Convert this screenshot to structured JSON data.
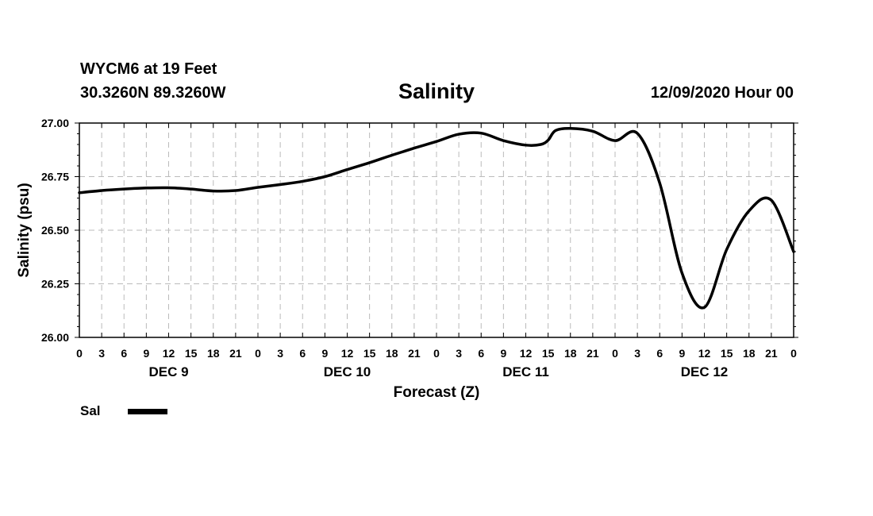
{
  "header": {
    "station": "WYCM6 at 19 Feet",
    "coords": "30.3260N 89.3260W",
    "title": "Salinity",
    "issued": "12/09/2020 Hour 00"
  },
  "chart_data": {
    "type": "line",
    "title": "Salinity",
    "xlabel": "Forecast (Z)",
    "ylabel": "Salinity (psu)",
    "ylim": [
      26.0,
      27.0
    ],
    "yticks": [
      "26.00",
      "26.25",
      "26.50",
      "26.75",
      "27.00"
    ],
    "ytick_values": [
      26.0,
      26.25,
      26.5,
      26.75,
      27.0
    ],
    "xlim_hours": [
      0,
      96
    ],
    "xtick_labels": [
      "0",
      "3",
      "6",
      "9",
      "12",
      "15",
      "18",
      "21",
      "0",
      "3",
      "6",
      "9",
      "12",
      "15",
      "18",
      "21",
      "0",
      "3",
      "6",
      "9",
      "12",
      "15",
      "18",
      "21",
      "0",
      "3",
      "6",
      "9",
      "12",
      "15",
      "18",
      "21",
      "0"
    ],
    "day_labels": [
      {
        "label": "DEC 9",
        "hour": 12
      },
      {
        "label": "DEC 10",
        "hour": 36
      },
      {
        "label": "DEC 11",
        "hour": 60
      },
      {
        "label": "DEC 12",
        "hour": 84
      }
    ],
    "grid": true,
    "x_hours": [
      0,
      3,
      6,
      9,
      12,
      15,
      18,
      21,
      24,
      27,
      30,
      33,
      36,
      39,
      42,
      45,
      48,
      51,
      54,
      57,
      60,
      62,
      63,
      64,
      66,
      69,
      72,
      75,
      78,
      81,
      84,
      87,
      90,
      93,
      96
    ],
    "series": [
      {
        "name": "Sal",
        "color": "#000000",
        "values": [
          26.675,
          26.685,
          26.692,
          26.697,
          26.698,
          26.692,
          26.683,
          26.685,
          26.7,
          26.713,
          26.728,
          26.75,
          26.783,
          26.815,
          26.85,
          26.883,
          26.914,
          26.948,
          26.953,
          26.918,
          26.897,
          26.9,
          26.92,
          26.965,
          26.975,
          26.962,
          26.918,
          26.952,
          26.72,
          26.3,
          26.14,
          26.41,
          26.59,
          26.64,
          26.4
        ]
      }
    ],
    "legend": {
      "position": "bottom-left",
      "entries": [
        "Sal"
      ]
    }
  }
}
